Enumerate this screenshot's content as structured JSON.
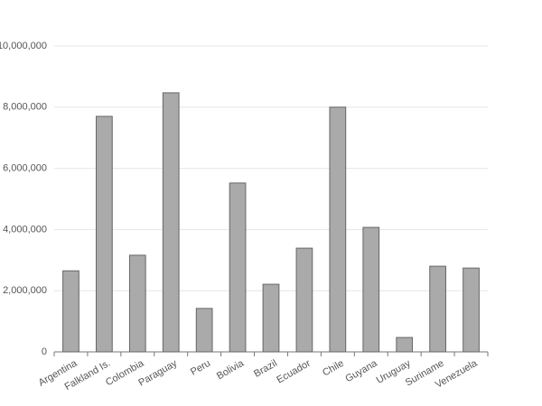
{
  "chart_data": {
    "type": "bar",
    "categories": [
      "Argentina",
      "Falkland Is.",
      "Colombia",
      "Paraguay",
      "Peru",
      "Bolivia",
      "Brazil",
      "Ecuador",
      "Chile",
      "Guyana",
      "Uruguay",
      "Suriname",
      "Venezuela"
    ],
    "values": [
      2650000,
      7700000,
      3160000,
      8470000,
      1420000,
      5520000,
      2210000,
      3390000,
      8000000,
      4070000,
      470000,
      2800000,
      2740000
    ],
    "color": "#aaaaaa",
    "ylim": [
      0,
      10000000
    ],
    "yticks": [
      0,
      {
        "value": 2000000,
        "label": "2,000,000"
      },
      {
        "value": 4000000,
        "label": "4,000,000"
      },
      {
        "value": 6000000,
        "label": "6,000,000"
      },
      {
        "value": 8000000,
        "label": "8,000,000"
      },
      {
        "value": 10000000,
        "label": "10,000,000"
      }
    ],
    "grid": true
  }
}
